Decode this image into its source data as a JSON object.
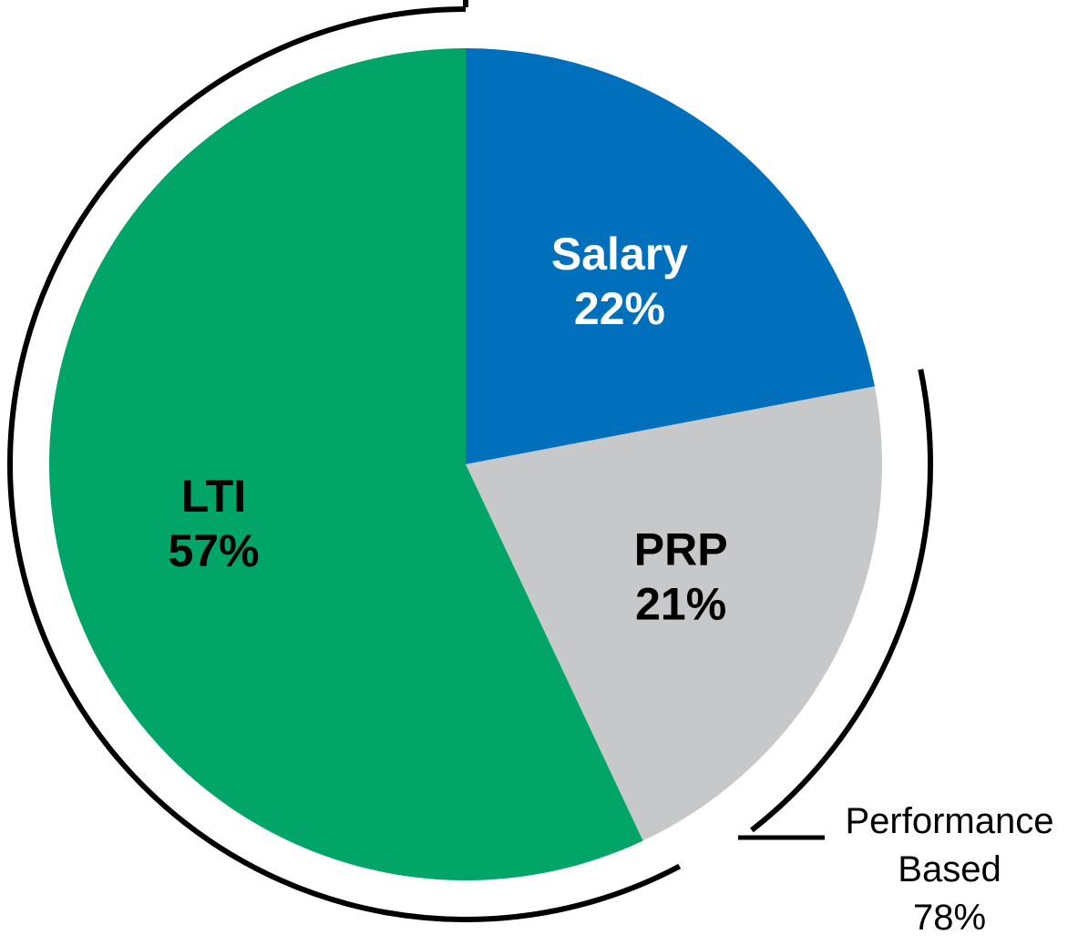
{
  "chart_data": {
    "type": "pie",
    "slices": [
      {
        "label": "Salary",
        "value": 22,
        "value_text": "22%",
        "color": "#0070BC",
        "label_color": "#FFFFFF"
      },
      {
        "label": "PRP",
        "value": 21,
        "value_text": "21%",
        "color": "#C7C8CA",
        "label_color": "#000000"
      },
      {
        "label": "LTI",
        "value": 57,
        "value_text": "57%",
        "color": "#00A567",
        "label_color": "#000000"
      }
    ],
    "annotation": {
      "lines": [
        "Performance",
        "Based",
        "78%"
      ],
      "value": 78,
      "spans": [
        "PRP",
        "LTI"
      ]
    },
    "start": "12 o'clock",
    "direction": "clockwise"
  }
}
